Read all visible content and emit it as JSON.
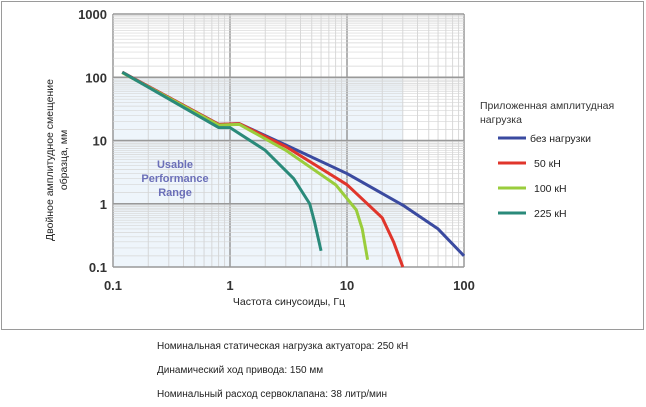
{
  "chart_data": {
    "type": "line",
    "xscale": "log",
    "yscale": "log",
    "xlim": [
      0.1,
      100
    ],
    "ylim": [
      0.1,
      1000
    ],
    "xticks": [
      "0.1",
      "1",
      "10",
      "100"
    ],
    "yticks": [
      "0.1",
      "1",
      "10",
      "100",
      "1000"
    ],
    "xlabel": "Частота синусоиды, Гц",
    "ylabel": "Двойное амплитудное смещение образца, мм",
    "annotation": "Usable Performance Range",
    "legend_title": "Приложенная амплитудная нагрузка",
    "legend_position": "right",
    "grid": true,
    "series": [
      {
        "name": "без нагрузки",
        "color": "#3a4aa0",
        "points": [
          [
            0.12,
            120
          ],
          [
            0.8,
            18
          ],
          [
            1.2,
            18.5
          ],
          [
            3,
            8.5
          ],
          [
            10,
            3
          ],
          [
            30,
            0.95
          ],
          [
            60,
            0.4
          ],
          [
            100,
            0.15
          ]
        ]
      },
      {
        "name": "50 кН",
        "color": "#e0352b",
        "points": [
          [
            0.12,
            120
          ],
          [
            0.8,
            18
          ],
          [
            1.2,
            18.5
          ],
          [
            3,
            8
          ],
          [
            10,
            2
          ],
          [
            20,
            0.6
          ],
          [
            25,
            0.25
          ],
          [
            30,
            0.1
          ]
        ]
      },
      {
        "name": "100 кН",
        "color": "#9acd3c",
        "points": [
          [
            0.12,
            118
          ],
          [
            0.8,
            17.5
          ],
          [
            1.2,
            18
          ],
          [
            3,
            7
          ],
          [
            8,
            2
          ],
          [
            12,
            0.8
          ],
          [
            13.5,
            0.4
          ],
          [
            15,
            0.13
          ]
        ]
      },
      {
        "name": "225 кН",
        "color": "#2a8a7a",
        "points": [
          [
            0.12,
            120
          ],
          [
            0.8,
            16
          ],
          [
            1,
            16
          ],
          [
            2,
            7
          ],
          [
            3.5,
            2.5
          ],
          [
            4.8,
            1
          ],
          [
            5.3,
            0.5
          ],
          [
            6,
            0.18
          ]
        ]
      }
    ]
  },
  "notes": [
    "Номинальная статическая нагрузка актуатора: 250 кН",
    "Динамический ход привода: 150 мм",
    "Номинальный расход сервоклапана: 38 литр/мин"
  ]
}
